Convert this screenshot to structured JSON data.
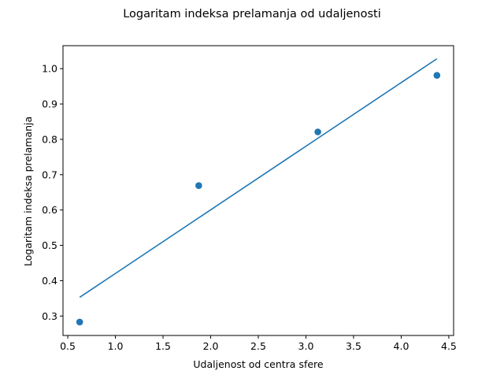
{
  "chart_data": {
    "type": "scatter",
    "title": "Logaritam indeksa prelamanja od udaljenosti",
    "xlabel": "Udaljenost od centra sfere",
    "ylabel": "Logaritam indeksa prelamanja",
    "xlim": [
      0.45,
      4.55
    ],
    "ylim": [
      0.245,
      1.065
    ],
    "xticks": [
      0.5,
      1.0,
      1.5,
      2.0,
      2.5,
      3.0,
      3.5,
      4.0,
      4.5
    ],
    "xtick_labels": [
      "0.5",
      "1.0",
      "1.5",
      "2.0",
      "2.5",
      "3.0",
      "3.5",
      "4.0",
      "4.5"
    ],
    "yticks": [
      0.3,
      0.4,
      0.5,
      0.6,
      0.7,
      0.8,
      0.9,
      1.0
    ],
    "ytick_labels": [
      "0.3",
      "0.4",
      "0.5",
      "0.6",
      "0.7",
      "0.8",
      "0.9",
      "1.0"
    ],
    "grid": false,
    "series": [
      {
        "kind": "scatter",
        "x": [
          0.625,
          1.875,
          3.125,
          4.375
        ],
        "y": [
          0.283,
          0.669,
          0.821,
          0.981
        ],
        "color": "#1f77b4"
      },
      {
        "kind": "line",
        "x": [
          0.625,
          4.375
        ],
        "y": [
          0.353,
          1.028
        ],
        "color": "#1f77b4"
      }
    ]
  }
}
